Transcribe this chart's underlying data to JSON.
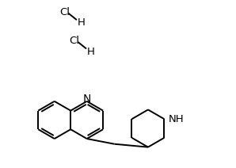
{
  "background_color": "#ffffff",
  "line_color": "#000000",
  "bond_width": 1.4,
  "font_size": 9.5,
  "figsize": [
    2.98,
    2.12
  ],
  "dpi": 100,
  "xlim": [
    0,
    9.5
  ],
  "ylim": [
    0,
    7.0
  ]
}
